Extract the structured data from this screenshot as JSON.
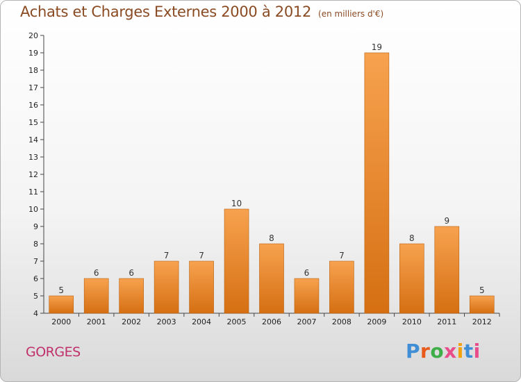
{
  "title": "Achats et Charges Externes 2000 à 2012",
  "unit_note": "(en milliers d'€)",
  "place_name": "GORGES",
  "brand": {
    "text": "Proxiti",
    "letter_colors": [
      "#3f8ed6",
      "#e8591a",
      "#3fae49",
      "#e84c8a",
      "#f1a20e",
      "#3f8ed6",
      "#e84c8a"
    ]
  },
  "colors": {
    "bar_top": "#f7a24f",
    "bar_bottom": "#d56f12",
    "bar_edge": "#b9600f",
    "axis": "#444444"
  },
  "chart_data": {
    "type": "bar",
    "title": "Achats et Charges Externes 2000 à 2012",
    "subtitle": "(en milliers d'€)",
    "categories": [
      "2000",
      "2001",
      "2002",
      "2003",
      "2004",
      "2005",
      "2006",
      "2007",
      "2008",
      "2009",
      "2010",
      "2011",
      "2012"
    ],
    "values": [
      5,
      6,
      6,
      7,
      7,
      10,
      8,
      6,
      7,
      19,
      8,
      9,
      5
    ],
    "ylim": [
      4,
      20
    ],
    "yticks": [
      4,
      5,
      6,
      7,
      8,
      9,
      10,
      11,
      12,
      13,
      14,
      15,
      16,
      17,
      18,
      19,
      20
    ],
    "grid": false,
    "data_labels": true
  }
}
